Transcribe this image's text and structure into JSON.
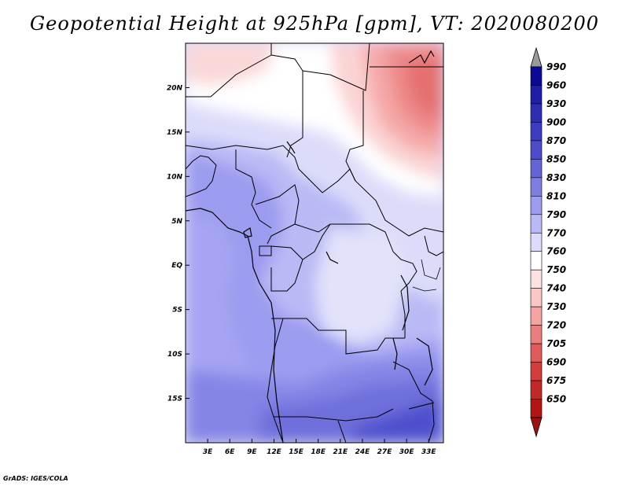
{
  "title": "Geopotential Height at 925hPa [gpm], VT: 2020080200",
  "footer": "GrADS: IGES/COLA",
  "map": {
    "lon_range": [
      0,
      35
    ],
    "lat_range": [
      -20,
      25
    ],
    "lat_labels": [
      {
        "lat": 20,
        "text": "20N"
      },
      {
        "lat": 15,
        "text": "15N"
      },
      {
        "lat": 10,
        "text": "10N"
      },
      {
        "lat": 5,
        "text": "5N"
      },
      {
        "lat": 0,
        "text": "EQ"
      },
      {
        "lat": -5,
        "text": "5S"
      },
      {
        "lat": -10,
        "text": "10S"
      },
      {
        "lat": -15,
        "text": "15S"
      }
    ],
    "lon_labels": [
      {
        "lon": 3,
        "text": "3E"
      },
      {
        "lon": 6,
        "text": "6E"
      },
      {
        "lon": 9,
        "text": "9E"
      },
      {
        "lon": 12,
        "text": "12E"
      },
      {
        "lon": 15,
        "text": "15E"
      },
      {
        "lon": 18,
        "text": "18E"
      },
      {
        "lon": 21,
        "text": "21E"
      },
      {
        "lon": 24,
        "text": "24E"
      },
      {
        "lon": 27,
        "text": "27E"
      },
      {
        "lon": 30,
        "text": "30E"
      },
      {
        "lon": 33,
        "text": "33E"
      }
    ]
  },
  "colorbar": {
    "levels": [
      {
        "label": "990",
        "color": "#0a0a96"
      },
      {
        "label": "960",
        "color": "#1e1ea8"
      },
      {
        "label": "930",
        "color": "#2d2db4"
      },
      {
        "label": "900",
        "color": "#3c3cc0"
      },
      {
        "label": "870",
        "color": "#4b4bcb"
      },
      {
        "label": "850",
        "color": "#6464d7"
      },
      {
        "label": "830",
        "color": "#7d7de2"
      },
      {
        "label": "810",
        "color": "#9b9bf0"
      },
      {
        "label": "790",
        "color": "#b9b9f5"
      },
      {
        "label": "770",
        "color": "#dcdcfa"
      },
      {
        "label": "760",
        "color": "#ffffff"
      },
      {
        "label": "750",
        "color": "#fde2e2"
      },
      {
        "label": "740",
        "color": "#fac6c6"
      },
      {
        "label": "730",
        "color": "#f5a3a3"
      },
      {
        "label": "720",
        "color": "#eb7d7d"
      },
      {
        "label": "705",
        "color": "#e05a5a"
      },
      {
        "label": "690",
        "color": "#d23c3c"
      },
      {
        "label": "675",
        "color": "#c32828"
      },
      {
        "label": "650",
        "color": "#b41414"
      }
    ],
    "top_arrow_color": "#9a9a9a",
    "bottom_arrow_color": "#a01010"
  }
}
